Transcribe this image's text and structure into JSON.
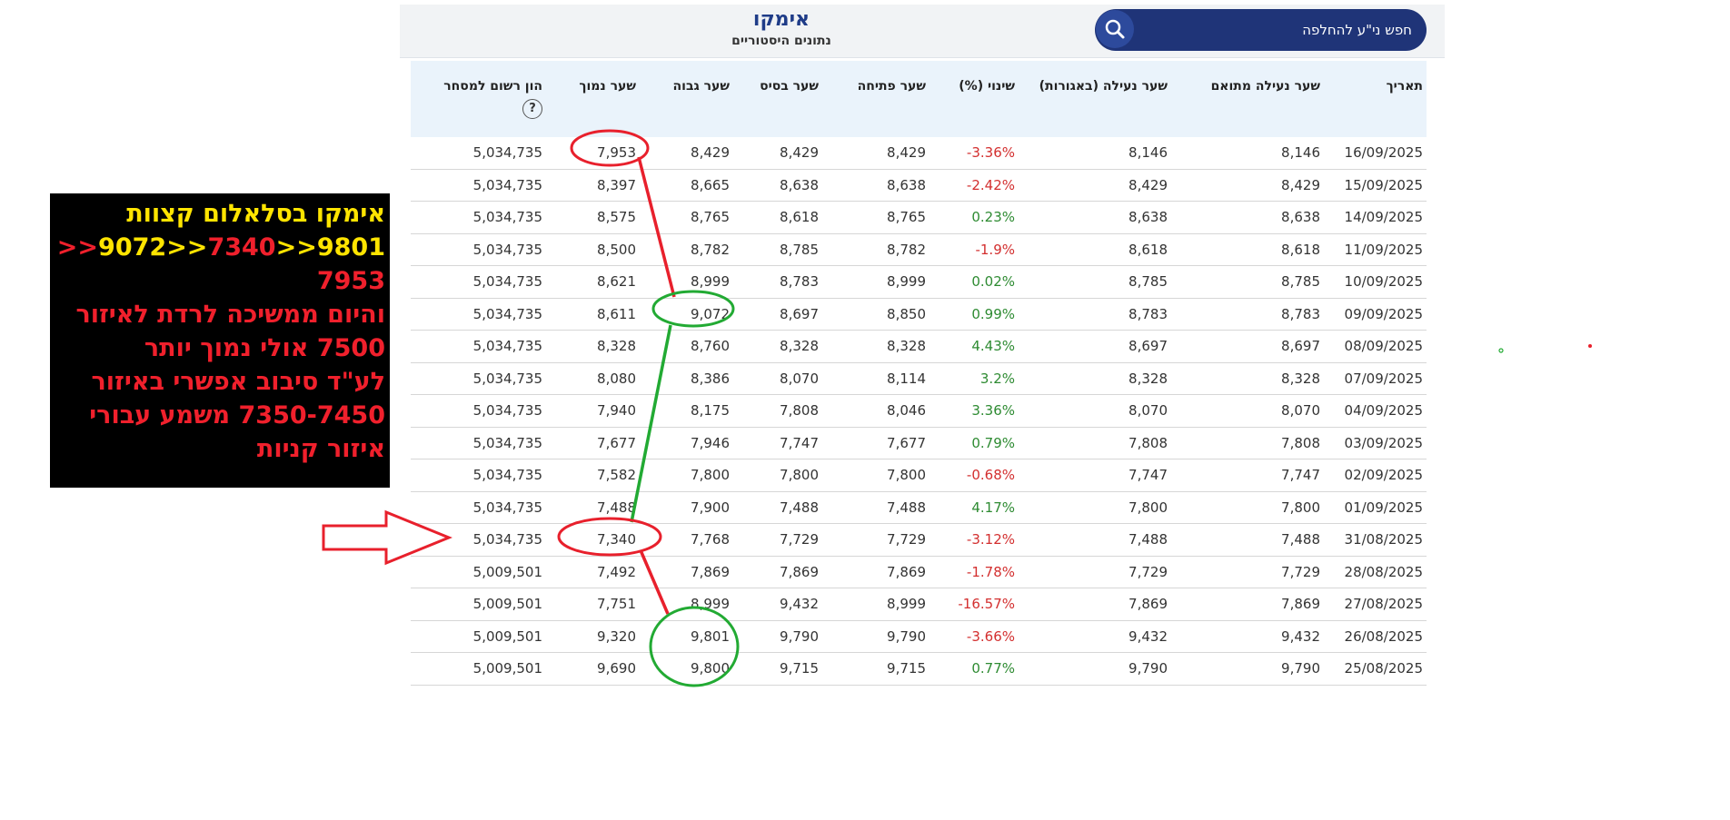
{
  "header": {
    "company": "אימקו",
    "subtitle": "נתונים היסטוריים",
    "search_placeholder": "חפש ני\"ע להחלפה",
    "search_icon": "search-icon"
  },
  "table": {
    "columns": [
      "תאריך",
      "שער נעילה מתואם",
      "שער נעילה (באגורות)",
      "שינוי (%)",
      "שער פתיחה",
      "שער בסיס",
      "שער גבוה",
      "שער נמוך",
      "הון רשום למסחר"
    ],
    "help_icon_label": "?",
    "rows": [
      {
        "date": "16/09/2025",
        "adj": "8,146",
        "close": "8,146",
        "chg": "-3.36%",
        "open": "8,429",
        "base": "8,429",
        "high": "8,429",
        "low": "7,953",
        "cap": "5,034,735"
      },
      {
        "date": "15/09/2025",
        "adj": "8,429",
        "close": "8,429",
        "chg": "-2.42%",
        "open": "8,638",
        "base": "8,638",
        "high": "8,665",
        "low": "8,397",
        "cap": "5,034,735"
      },
      {
        "date": "14/09/2025",
        "adj": "8,638",
        "close": "8,638",
        "chg": "0.23%",
        "open": "8,765",
        "base": "8,618",
        "high": "8,765",
        "low": "8,575",
        "cap": "5,034,735"
      },
      {
        "date": "11/09/2025",
        "adj": "8,618",
        "close": "8,618",
        "chg": "-1.9%",
        "open": "8,782",
        "base": "8,785",
        "high": "8,782",
        "low": "8,500",
        "cap": "5,034,735"
      },
      {
        "date": "10/09/2025",
        "adj": "8,785",
        "close": "8,785",
        "chg": "0.02%",
        "open": "8,999",
        "base": "8,783",
        "high": "8,999",
        "low": "8,621",
        "cap": "5,034,735"
      },
      {
        "date": "09/09/2025",
        "adj": "8,783",
        "close": "8,783",
        "chg": "0.99%",
        "open": "8,850",
        "base": "8,697",
        "high": "9,072",
        "low": "8,611",
        "cap": "5,034,735"
      },
      {
        "date": "08/09/2025",
        "adj": "8,697",
        "close": "8,697",
        "chg": "4.43%",
        "open": "8,328",
        "base": "8,328",
        "high": "8,760",
        "low": "8,328",
        "cap": "5,034,735"
      },
      {
        "date": "07/09/2025",
        "adj": "8,328",
        "close": "8,328",
        "chg": "3.2%",
        "open": "8,114",
        "base": "8,070",
        "high": "8,386",
        "low": "8,080",
        "cap": "5,034,735"
      },
      {
        "date": "04/09/2025",
        "adj": "8,070",
        "close": "8,070",
        "chg": "3.36%",
        "open": "8,046",
        "base": "7,808",
        "high": "8,175",
        "low": "7,940",
        "cap": "5,034,735"
      },
      {
        "date": "03/09/2025",
        "adj": "7,808",
        "close": "7,808",
        "chg": "0.79%",
        "open": "7,677",
        "base": "7,747",
        "high": "7,946",
        "low": "7,677",
        "cap": "5,034,735"
      },
      {
        "date": "02/09/2025",
        "adj": "7,747",
        "close": "7,747",
        "chg": "-0.68%",
        "open": "7,800",
        "base": "7,800",
        "high": "7,800",
        "low": "7,582",
        "cap": "5,034,735"
      },
      {
        "date": "01/09/2025",
        "adj": "7,800",
        "close": "7,800",
        "chg": "4.17%",
        "open": "7,488",
        "base": "7,488",
        "high": "7,900",
        "low": "7,488",
        "cap": "5,034,735"
      },
      {
        "date": "31/08/2025",
        "adj": "7,488",
        "close": "7,488",
        "chg": "-3.12%",
        "open": "7,729",
        "base": "7,729",
        "high": "7,768",
        "low": "7,340",
        "cap": "5,034,735"
      },
      {
        "date": "28/08/2025",
        "adj": "7,729",
        "close": "7,729",
        "chg": "-1.78%",
        "open": "7,869",
        "base": "7,869",
        "high": "7,869",
        "low": "7,492",
        "cap": "5,009,501"
      },
      {
        "date": "27/08/2025",
        "adj": "7,869",
        "close": "7,869",
        "chg": "-16.57%",
        "open": "8,999",
        "base": "9,432",
        "high": "8,999",
        "low": "7,751",
        "cap": "5,009,501"
      },
      {
        "date": "26/08/2025",
        "adj": "9,432",
        "close": "9,432",
        "chg": "-3.66%",
        "open": "9,790",
        "base": "9,790",
        "high": "9,801",
        "low": "9,320",
        "cap": "5,009,501"
      },
      {
        "date": "25/08/2025",
        "adj": "9,790",
        "close": "9,790",
        "chg": "0.77%",
        "open": "9,715",
        "base": "9,715",
        "high": "9,800",
        "low": "9,690",
        "cap": "5,009,501"
      }
    ]
  },
  "annotation": {
    "line1": "אימקו בסלאלום קצוות",
    "line2_parts": [
      "9801",
      "<<",
      "7340",
      "<<",
      "9072",
      "<<"
    ],
    "line3": "7953",
    "line4": "והיום ממשיכה לרדת לאיזור",
    "line5": "7500 אולי נמוך יותר",
    "line6": "לע\"ד  סיבוב אפשרי באיזור",
    "line7": "7350-7450 משמע עבורי",
    "line8": "איזור קניות",
    "colors": {
      "yellow": "#ffe400",
      "red": "#f0202c",
      "green": "#22aa33",
      "background": "#000000"
    }
  }
}
